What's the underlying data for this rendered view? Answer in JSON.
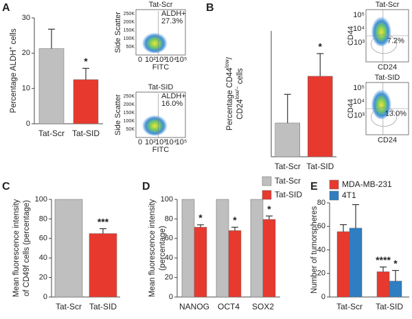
{
  "chart_data": [
    {
      "type": "bar",
      "panel": "A",
      "ylabel_lines": [
        [
          "Percentage ALDH",
          "+",
          " cells"
        ]
      ],
      "categories": [
        "Tat-Scr",
        "Tat-SID"
      ],
      "values": [
        21.3,
        12.5
      ],
      "errors": [
        5.5,
        3.2
      ],
      "colors": [
        "#bfbfbf",
        "#e8392f"
      ],
      "star_labels": [
        null,
        "*"
      ],
      "ylim": [
        0,
        30
      ],
      "yticks": [
        0,
        10,
        20,
        30
      ]
    },
    {
      "type": "bar",
      "panel": "B",
      "ylabel_lines": [
        [
          "Percentage CD44",
          "low",
          "/"
        ],
        [
          "CD24",
          "low/−",
          " cells"
        ]
      ],
      "categories": [
        "Tat-Scr",
        "Tat-SID"
      ],
      "values": [
        6.7,
        16.0
      ],
      "errors": [
        5.7,
        4.5
      ],
      "colors": [
        "#bfbfbf",
        "#e8392f"
      ],
      "star_labels": [
        null,
        "*"
      ],
      "ylim": [
        0,
        25
      ]
    },
    {
      "type": "bar",
      "panel": "C",
      "ylabel_lines": [
        [
          "Mean fluorescence intensity"
        ],
        [
          "of CD49f cells (percentage)"
        ]
      ],
      "categories": [
        "Tat-Scr",
        "Tat-SID"
      ],
      "values": [
        100,
        65
      ],
      "errors": [
        null,
        5
      ],
      "colors": [
        "#bfbfbf",
        "#e8392f"
      ],
      "star_labels": [
        null,
        "***"
      ],
      "ylim": [
        0,
        100
      ],
      "yticks": [
        0,
        20,
        40,
        60,
        80,
        100
      ]
    },
    {
      "type": "bar",
      "panel": "D",
      "ylabel_lines": [
        [
          "Mean fluorescence intensity"
        ],
        [
          "(percentage)"
        ]
      ],
      "categories": [
        "NANOG",
        "OCT4",
        "SOX2"
      ],
      "series": [
        {
          "name": "Tat-Scr",
          "color": "#bfbfbf",
          "values": [
            100,
            100,
            100
          ],
          "errors": [
            null,
            null,
            null
          ],
          "star_labels": [
            null,
            null,
            null
          ]
        },
        {
          "name": "Tat-SID",
          "color": "#e8392f",
          "values": [
            71.5,
            68,
            79.5
          ],
          "errors": [
            2.5,
            3.5,
            3.5
          ],
          "star_labels": [
            "*",
            "*",
            "*"
          ]
        }
      ],
      "ylim": [
        0,
        100
      ],
      "yticks": [
        0,
        20,
        40,
        60,
        80,
        100
      ]
    },
    {
      "type": "bar",
      "panel": "E",
      "ylabel_lines": [
        [
          "Number of tumorspheres"
        ]
      ],
      "categories": [
        "Tat-Scr",
        "Tat-SID"
      ],
      "series": [
        {
          "name": "MDA-MB-231",
          "color": "#e8392f",
          "values": [
            55.5,
            21.5
          ],
          "errors": [
            6,
            4
          ],
          "star_labels": [
            null,
            "****"
          ]
        },
        {
          "name": "4T1",
          "color": "#2e7ec1",
          "values": [
            58.5,
            13.5
          ],
          "errors": [
            20,
            9
          ],
          "star_labels": [
            null,
            "*"
          ]
        }
      ],
      "ylim": [
        0,
        80
      ],
      "yticks": [
        0,
        20,
        40,
        60,
        80
      ]
    }
  ],
  "insets": [
    {
      "title": "Tat-Scr",
      "gate_label": [
        "ALDH+",
        "27.3%"
      ],
      "ylabel": "Side Scatter",
      "xlabel": "FITC",
      "yticks": [
        "250K",
        "200K",
        "150K",
        "100K",
        "50K"
      ],
      "xticks": [
        "0",
        "10²",
        "10³",
        "10⁴",
        "10⁵"
      ]
    },
    {
      "title": "Tat-SID",
      "gate_label": [
        "ALDH+",
        "16.0%"
      ],
      "ylabel": "Side Scatter",
      "xlabel": "FITC",
      "yticks": [
        "250K",
        "200K",
        "150K",
        "100K",
        "50K"
      ],
      "xticks": [
        "0",
        "10²",
        "10³",
        "10⁴",
        "10⁵"
      ]
    },
    {
      "title": "Tat-Scr",
      "gate_label": [
        "7.2%"
      ],
      "ylabel": "CD44",
      "xlabel": "CD24",
      "yticks": [
        "10⁵",
        "10⁴",
        "10³"
      ]
    },
    {
      "title": "Tat-SID",
      "gate_label": [
        "13.0%"
      ],
      "ylabel": "CD44",
      "xlabel": "CD24",
      "yticks": [
        "10⁵",
        "10⁴",
        "10³"
      ]
    }
  ]
}
